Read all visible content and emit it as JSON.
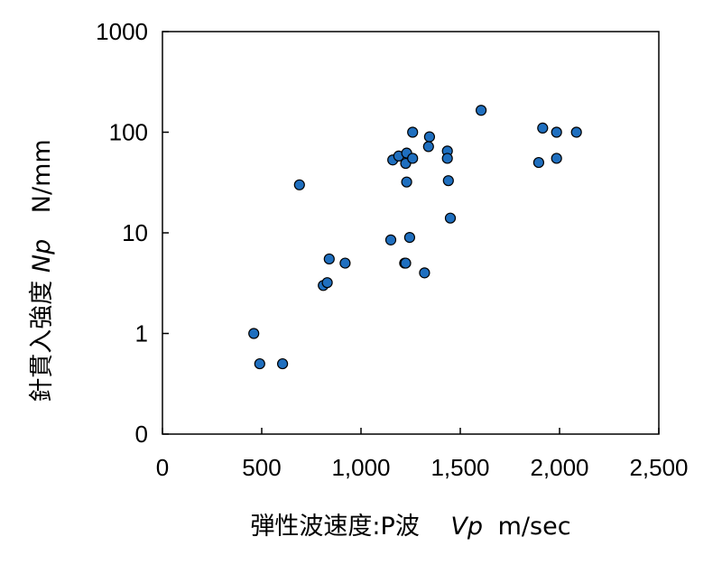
{
  "chart_data": {
    "type": "scatter",
    "title": "",
    "xlabel": {
      "prefix": "弾性波速度:P波",
      "symbol": "Vp",
      "unit": "m/sec"
    },
    "ylabel": {
      "prefix": "針貫入強度",
      "symbol": "Np",
      "unit": "N/mm"
    },
    "xlim": [
      0,
      2500
    ],
    "ylim": [
      0.1,
      1000
    ],
    "yscale": "log",
    "x_ticks": [
      0,
      500,
      1000,
      1500,
      2000,
      2500
    ],
    "x_tick_labels": [
      "0",
      "500",
      "1,000",
      "1,500",
      "2,000",
      "2,500"
    ],
    "y_ticks": [
      0.1,
      1,
      10,
      100,
      1000
    ],
    "y_tick_labels": [
      "0",
      "1",
      "10",
      "100",
      "1000"
    ],
    "grid": false,
    "legend": "none",
    "marker_color": "#1f6fbf",
    "marker_edge": "#000000",
    "points": [
      {
        "x": 460,
        "y": 1.0
      },
      {
        "x": 490,
        "y": 0.5
      },
      {
        "x": 605,
        "y": 0.5
      },
      {
        "x": 690,
        "y": 30
      },
      {
        "x": 810,
        "y": 3.0
      },
      {
        "x": 830,
        "y": 3.2
      },
      {
        "x": 840,
        "y": 5.5
      },
      {
        "x": 920,
        "y": 5.0
      },
      {
        "x": 1150,
        "y": 8.5
      },
      {
        "x": 1160,
        "y": 53
      },
      {
        "x": 1190,
        "y": 58
      },
      {
        "x": 1220,
        "y": 5.0
      },
      {
        "x": 1225,
        "y": 5.0
      },
      {
        "x": 1225,
        "y": 49
      },
      {
        "x": 1230,
        "y": 32
      },
      {
        "x": 1230,
        "y": 62
      },
      {
        "x": 1245,
        "y": 9.0
      },
      {
        "x": 1260,
        "y": 100
      },
      {
        "x": 1260,
        "y": 55
      },
      {
        "x": 1320,
        "y": 4.0
      },
      {
        "x": 1340,
        "y": 72
      },
      {
        "x": 1345,
        "y": 90
      },
      {
        "x": 1435,
        "y": 65
      },
      {
        "x": 1435,
        "y": 55
      },
      {
        "x": 1440,
        "y": 33
      },
      {
        "x": 1450,
        "y": 14
      },
      {
        "x": 1605,
        "y": 165
      },
      {
        "x": 1895,
        "y": 50
      },
      {
        "x": 1915,
        "y": 110
      },
      {
        "x": 1985,
        "y": 55
      },
      {
        "x": 1985,
        "y": 100
      },
      {
        "x": 2085,
        "y": 100
      }
    ]
  }
}
